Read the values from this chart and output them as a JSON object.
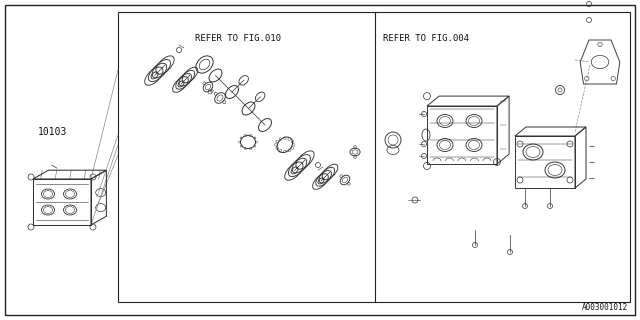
{
  "bg_color": "#f5f5f5",
  "border_color": "#222222",
  "line_color": "#333333",
  "text_color": "#111111",
  "fig_width": 6.4,
  "fig_height": 3.2,
  "dpi": 100,
  "part_number": "10103",
  "ref_fig010": "REFER TO FIG.010",
  "ref_fig004": "REFER TO FIG.004",
  "catalog_number": "A003001012"
}
